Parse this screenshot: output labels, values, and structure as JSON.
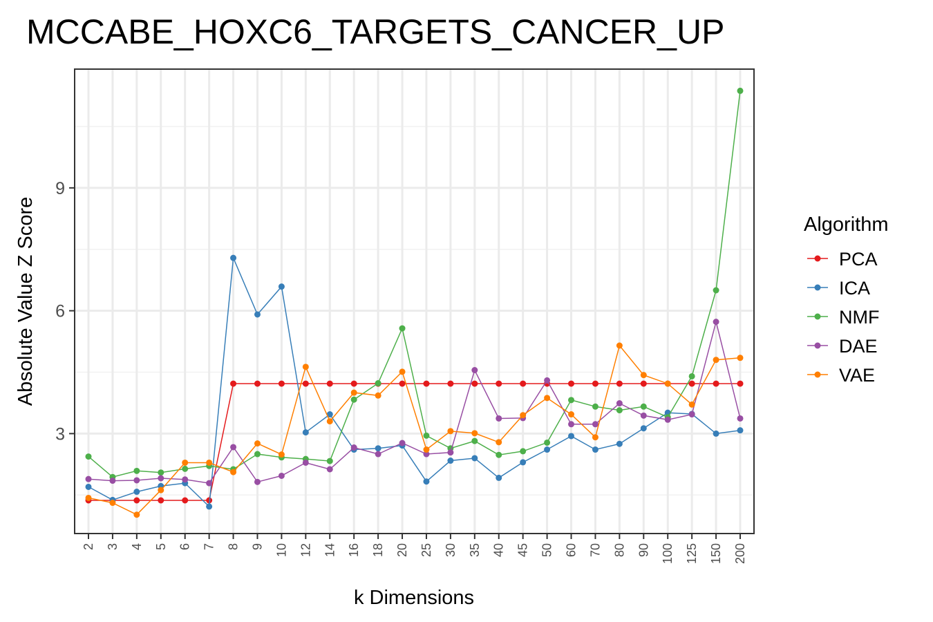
{
  "chart_data": {
    "type": "line",
    "title": "MCCABE_HOXC6_TARGETS_CANCER_UP",
    "xlabel": "k Dimensions",
    "ylabel": "Absolute Value Z Score",
    "x": [
      "2",
      "3",
      "4",
      "5",
      "6",
      "7",
      "8",
      "9",
      "10",
      "12",
      "14",
      "16",
      "18",
      "20",
      "25",
      "30",
      "35",
      "40",
      "45",
      "50",
      "60",
      "70",
      "80",
      "90",
      "100",
      "125",
      "150",
      "200"
    ],
    "ylim": [
      0.56,
      11.9
    ],
    "yticks": [
      3,
      6,
      9
    ],
    "grid": true,
    "legend": {
      "title": "Algorithm",
      "position": "right"
    },
    "series": [
      {
        "name": "PCA",
        "color": "#E41A1C",
        "values": [
          1.37,
          1.37,
          1.37,
          1.37,
          1.37,
          1.37,
          4.22,
          4.22,
          4.22,
          4.22,
          4.22,
          4.22,
          4.22,
          4.22,
          4.22,
          4.22,
          4.22,
          4.22,
          4.22,
          4.22,
          4.22,
          4.22,
          4.22,
          4.22,
          4.22,
          4.22,
          4.22,
          4.22
        ]
      },
      {
        "name": "ICA",
        "color": "#377EB8",
        "values": [
          1.7,
          1.38,
          1.58,
          1.72,
          1.79,
          1.22,
          7.29,
          5.91,
          6.59,
          3.03,
          3.47,
          2.61,
          2.64,
          2.71,
          1.83,
          2.34,
          2.4,
          1.92,
          2.3,
          2.61,
          2.94,
          2.61,
          2.75,
          3.13,
          3.51,
          3.48,
          3.0,
          3.08
        ]
      },
      {
        "name": "NMF",
        "color": "#4DAF4A",
        "values": [
          2.44,
          1.94,
          2.09,
          2.05,
          2.14,
          2.21,
          2.13,
          2.5,
          2.42,
          2.38,
          2.33,
          3.83,
          4.23,
          5.57,
          2.95,
          2.64,
          2.82,
          2.48,
          2.57,
          2.78,
          3.82,
          3.66,
          3.57,
          3.66,
          3.4,
          4.4,
          6.5,
          11.37
        ]
      },
      {
        "name": "DAE",
        "color": "#984EA3",
        "values": [
          1.89,
          1.85,
          1.86,
          1.91,
          1.88,
          1.79,
          2.67,
          1.82,
          1.97,
          2.29,
          2.13,
          2.66,
          2.5,
          2.77,
          2.5,
          2.54,
          4.55,
          3.37,
          3.38,
          4.3,
          3.23,
          3.23,
          3.74,
          3.44,
          3.34,
          3.47,
          5.73,
          3.37
        ]
      },
      {
        "name": "VAE",
        "color": "#FF7F00",
        "values": [
          1.43,
          1.31,
          1.02,
          1.62,
          2.29,
          2.29,
          2.06,
          2.76,
          2.49,
          4.63,
          3.3,
          4.0,
          3.93,
          4.51,
          2.61,
          3.06,
          3.01,
          2.79,
          3.45,
          3.87,
          3.47,
          2.91,
          5.15,
          4.43,
          4.22,
          3.71,
          4.8,
          4.85
        ]
      }
    ]
  }
}
